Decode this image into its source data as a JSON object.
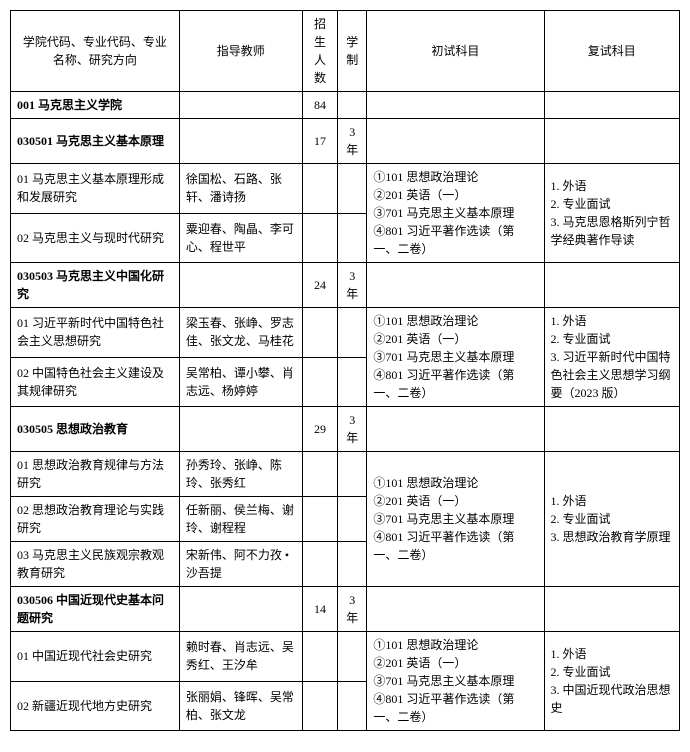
{
  "headers": {
    "col1": "学院代码、专业代码、专业名称、研究方向",
    "col2": "指导教师",
    "col3": "招生人数",
    "col4": "学制",
    "col5": "初试科目",
    "col6": "复试科目"
  },
  "school": {
    "code_name": "001 马克思主义学院",
    "count": "84"
  },
  "majors": [
    {
      "code_name": "030501 马克思主义基本原理",
      "count": "17",
      "duration": "3 年",
      "directions": [
        {
          "name": "01 马克思主义基本原理形成和发展研究",
          "teachers": "徐国松、石路、张轩、潘诗扬"
        },
        {
          "name": "02 马克思主义与现时代研究",
          "teachers": "粟迎春、陶晶、李可心、程世平"
        }
      ],
      "prelim": "①101 思想政治理论\n②201 英语（一）\n③701 马克思主义基本原理\n④801 习近平著作选读（第一、二卷）",
      "reexam": "1. 外语\n2. 专业面试\n3. 马克思恩格斯列宁哲学经典著作导读"
    },
    {
      "code_name": "030503 马克思主义中国化研究",
      "count": "24",
      "duration": "3 年",
      "directions": [
        {
          "name": "01 习近平新时代中国特色社会主义思想研究",
          "teachers": "梁玉春、张峥、罗志佳、张文龙、马桂花"
        },
        {
          "name": "02 中国特色社会主义建设及其规律研究",
          "teachers": "吴常柏、谭小攀、肖志远、杨婷婷"
        }
      ],
      "prelim": "①101 思想政治理论\n②201 英语（一）\n③701 马克思主义基本原理\n④801 习近平著作选读（第一、二卷）",
      "reexam": "1. 外语\n2. 专业面试\n3. 习近平新时代中国特色社会主义思想学习纲要（2023 版）"
    },
    {
      "code_name": "030505 思想政治教育",
      "count": "29",
      "duration": "3 年",
      "directions": [
        {
          "name": "01 思想政治教育规律与方法研究",
          "teachers": "孙秀玲、张峥、陈玲、张秀红"
        },
        {
          "name": "02 思想政治教育理论与实践研究",
          "teachers": "任新丽、侯兰梅、谢玲、谢程程"
        },
        {
          "name": "03 马克思主义民族观宗教观教育研究",
          "teachers": "宋新伟、阿不力孜 •沙吾提"
        }
      ],
      "prelim": "①101 思想政治理论\n②201 英语（一）\n③701 马克思主义基本原理\n④801 习近平著作选读（第一、二卷）",
      "reexam": "1. 外语\n2. 专业面试\n3. 思想政治教育学原理"
    },
    {
      "code_name": "030506 中国近现代史基本问题研究",
      "count": "14",
      "duration": "3 年",
      "directions": [
        {
          "name": "01 中国近现代社会史研究",
          "teachers": "赖时春、肖志远、吴秀红、王汐牟"
        },
        {
          "name": "02 新疆近现代地方史研究",
          "teachers": "张丽娟、锋晖、吴常柏、张文龙"
        }
      ],
      "prelim": "①101 思想政治理论\n②201 英语（一）\n③701 马克思主义基本原理\n④801 习近平著作选读（第一、二卷）",
      "reexam": "1. 外语\n2. 专业面试\n3. 中国近现代政治思想史"
    }
  ]
}
